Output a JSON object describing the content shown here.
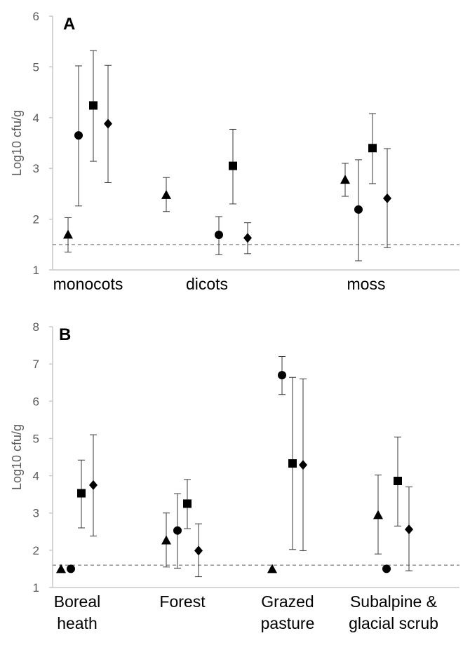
{
  "chart_data": [
    {
      "type": "scatter",
      "panel_label": "A",
      "ylabel": "Log10 cfu/g",
      "ylim": [
        1,
        6
      ],
      "yticks": [
        "1",
        "2",
        "3",
        "4",
        "5",
        "6"
      ],
      "categories": [
        [
          "monocots"
        ],
        [
          "dicots"
        ],
        [
          "moss"
        ]
      ],
      "threshold": 1.5,
      "series": [
        {
          "marker": "triangle",
          "values": [
            1.7,
            2.48,
            2.78
          ],
          "err_low": [
            1.35,
            2.15,
            2.45
          ],
          "err_high": [
            2.03,
            2.82,
            3.1
          ]
        },
        {
          "marker": "circle",
          "values": [
            3.65,
            1.69,
            2.19
          ],
          "err_low": [
            2.26,
            1.3,
            1.18
          ],
          "err_high": [
            5.02,
            2.05,
            3.17
          ]
        },
        {
          "marker": "square",
          "values": [
            4.24,
            3.05,
            3.4
          ],
          "err_low": [
            3.14,
            2.3,
            2.7
          ],
          "err_high": [
            5.32,
            3.77,
            4.08
          ]
        },
        {
          "marker": "diamond",
          "values": [
            3.88,
            1.63,
            2.41
          ],
          "err_low": [
            2.72,
            1.32,
            1.44
          ],
          "err_high": [
            5.03,
            1.93,
            3.39
          ]
        }
      ]
    },
    {
      "type": "scatter",
      "panel_label": "B",
      "ylabel": "Log10 cfu/g",
      "ylim": [
        1,
        8
      ],
      "yticks": [
        "1",
        "2",
        "3",
        "4",
        "5",
        "6",
        "7",
        "8"
      ],
      "categories": [
        [
          "Boreal",
          "heath"
        ],
        [
          "Forest"
        ],
        [
          "Grazed",
          "pasture"
        ],
        [
          "Subalpine &",
          "glacial scrub"
        ]
      ],
      "threshold": 1.6,
      "series": [
        {
          "marker": "triangle",
          "values": [
            1.5,
            2.27,
            1.5,
            2.95
          ],
          "err_low": [
            null,
            1.55,
            null,
            1.9
          ],
          "err_high": [
            null,
            3.0,
            null,
            4.02
          ]
        },
        {
          "marker": "circle",
          "values": [
            1.5,
            2.53,
            6.7,
            1.5
          ],
          "err_low": [
            null,
            1.52,
            6.18,
            null
          ],
          "err_high": [
            null,
            3.52,
            7.2,
            null
          ]
        },
        {
          "marker": "square",
          "values": [
            3.53,
            3.25,
            4.33,
            3.86
          ],
          "err_low": [
            2.6,
            2.58,
            2.02,
            2.65
          ],
          "err_high": [
            4.42,
            3.9,
            6.64,
            5.04
          ]
        },
        {
          "marker": "diamond",
          "values": [
            3.75,
            1.99,
            4.29,
            2.56
          ],
          "err_low": [
            2.38,
            1.29,
            1.99,
            1.45
          ],
          "err_high": [
            5.1,
            2.71,
            6.6,
            3.7
          ]
        }
      ]
    }
  ]
}
